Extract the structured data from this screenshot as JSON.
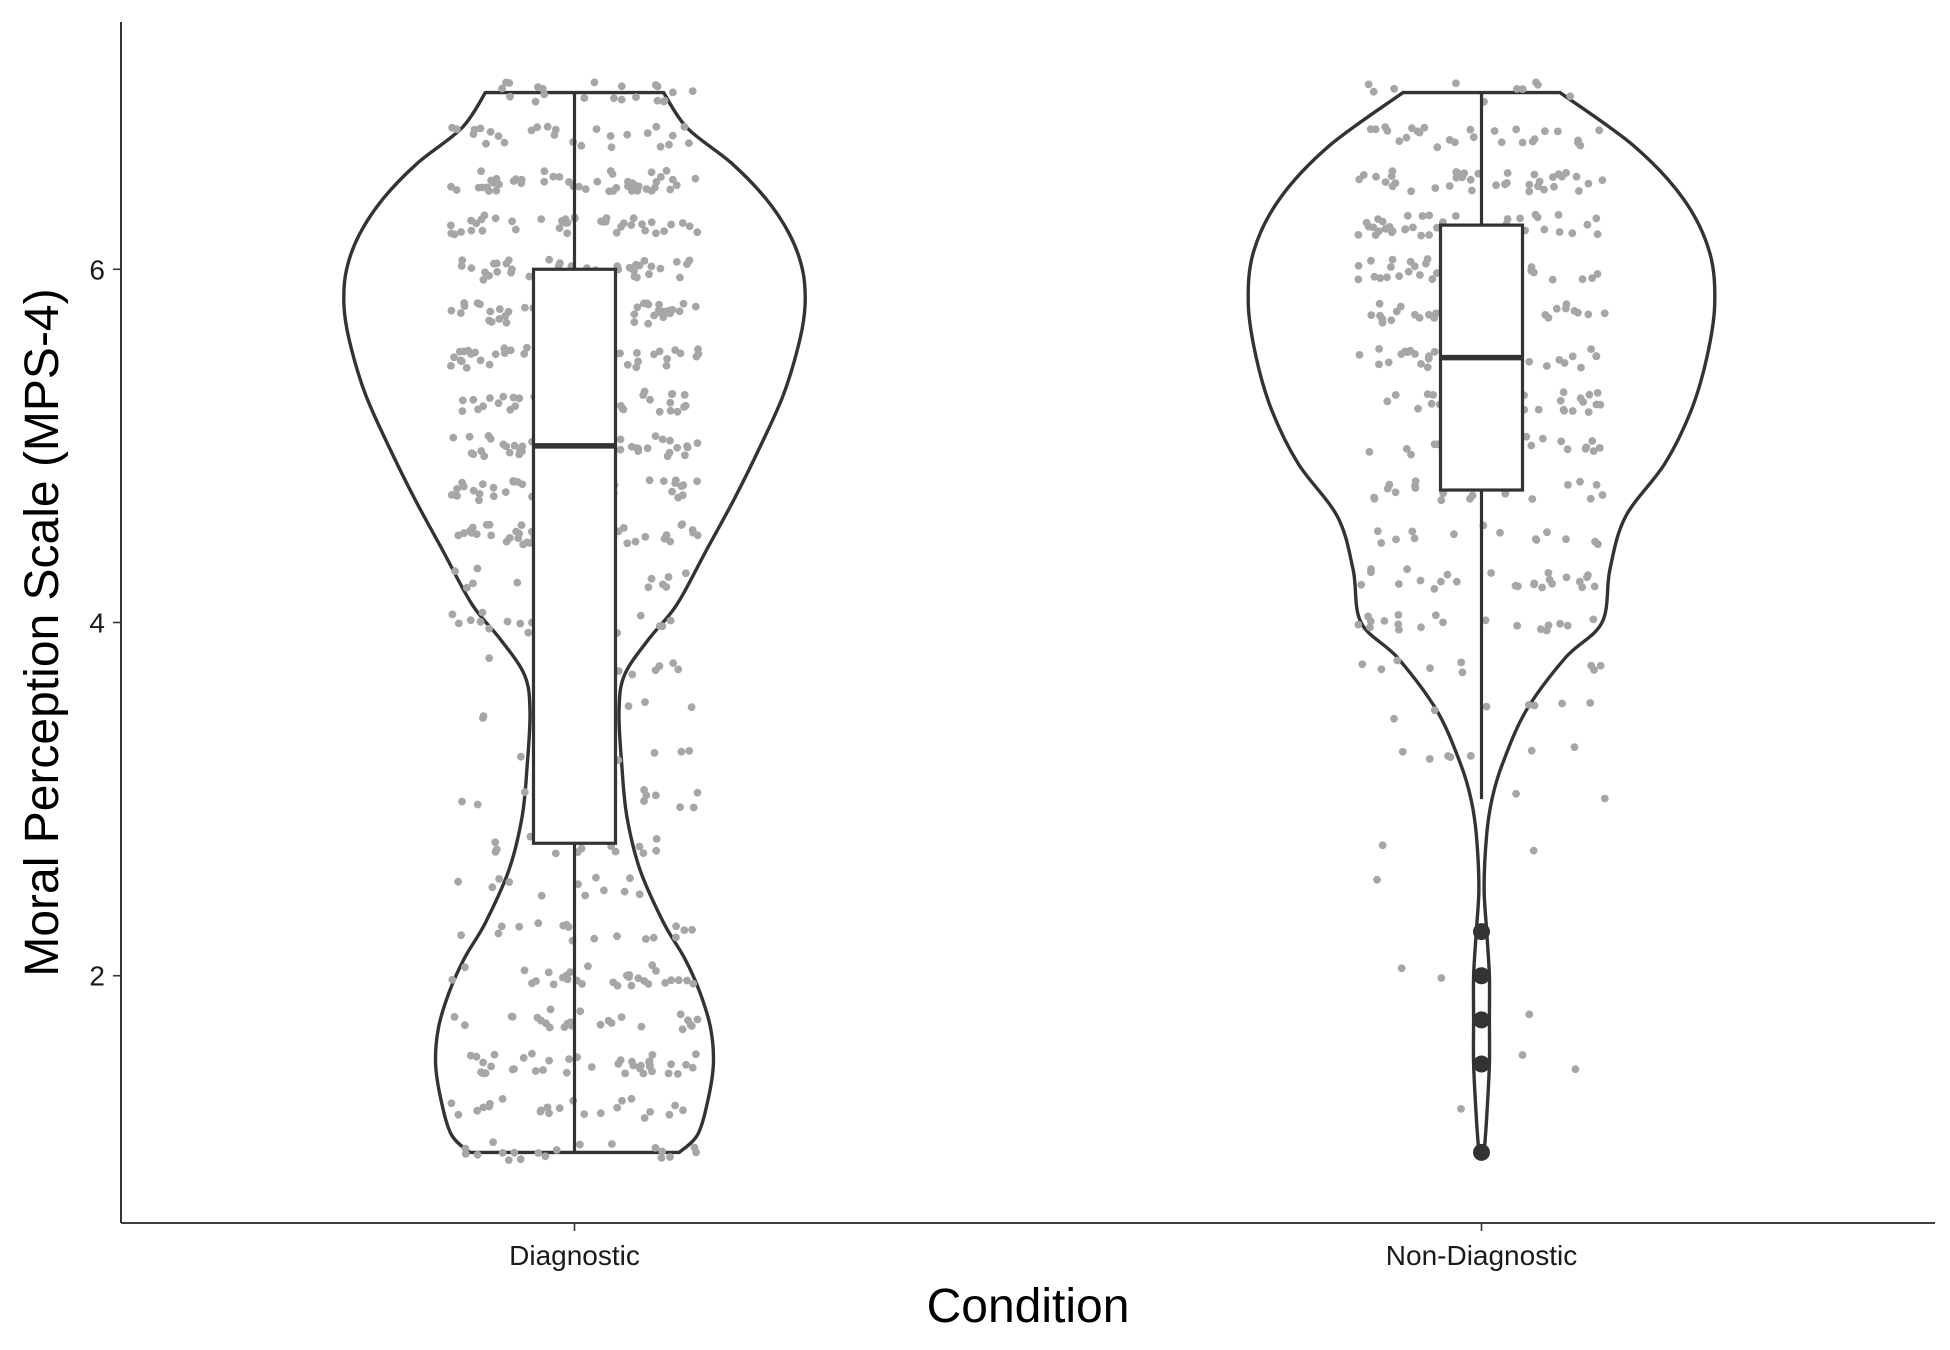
{
  "chart_data": {
    "type": "violin",
    "xlabel": "Condition",
    "ylabel": "Moral Perception Scale (MPS-4)",
    "ylim": [
      0.6,
      7.4
    ],
    "yticks": [
      2,
      4,
      6
    ],
    "categories": [
      "Diagnostic",
      "Non-Diagnostic"
    ],
    "grid": false,
    "colors": {
      "outline": "#333333",
      "points": "#a6a6a6",
      "fill": "#ffffff"
    },
    "groups": [
      {
        "name": "Diagnostic",
        "n_points": 720,
        "box": {
          "min": 1.0,
          "q1": 2.75,
          "median": 5.0,
          "q3": 6.0,
          "max": 7.0
        },
        "outliers": [],
        "density": [
          [
            1.0,
            0.4
          ],
          [
            1.1,
            0.47
          ],
          [
            1.3,
            0.51
          ],
          [
            1.5,
            0.53
          ],
          [
            1.7,
            0.52
          ],
          [
            1.9,
            0.48
          ],
          [
            2.1,
            0.42
          ],
          [
            2.3,
            0.34
          ],
          [
            2.6,
            0.25
          ],
          [
            2.9,
            0.2
          ],
          [
            3.2,
            0.18
          ],
          [
            3.5,
            0.17
          ],
          [
            3.7,
            0.19
          ],
          [
            3.9,
            0.28
          ],
          [
            4.1,
            0.39
          ],
          [
            4.4,
            0.5
          ],
          [
            4.7,
            0.61
          ],
          [
            5.0,
            0.71
          ],
          [
            5.3,
            0.8
          ],
          [
            5.6,
            0.86
          ],
          [
            5.8,
            0.88
          ],
          [
            6.0,
            0.87
          ],
          [
            6.2,
            0.82
          ],
          [
            6.4,
            0.73
          ],
          [
            6.6,
            0.6
          ],
          [
            6.8,
            0.43
          ],
          [
            7.0,
            0.34
          ]
        ]
      },
      {
        "name": "Non-Diagnostic",
        "n_points": 380,
        "box": {
          "min": 3.0,
          "q1": 4.75,
          "median": 5.5,
          "q3": 6.25,
          "max": 7.0
        },
        "outliers": [
          2.25,
          2.0,
          1.75,
          1.5,
          1.0
        ],
        "density": [
          [
            1.0,
            0.01
          ],
          [
            1.2,
            0.02
          ],
          [
            1.5,
            0.03
          ],
          [
            1.75,
            0.03
          ],
          [
            2.0,
            0.03
          ],
          [
            2.25,
            0.02
          ],
          [
            2.5,
            0.01
          ],
          [
            2.8,
            0.02
          ],
          [
            3.0,
            0.04
          ],
          [
            3.2,
            0.08
          ],
          [
            3.5,
            0.17
          ],
          [
            3.8,
            0.32
          ],
          [
            4.0,
            0.46
          ],
          [
            4.3,
            0.49
          ],
          [
            4.6,
            0.55
          ],
          [
            4.9,
            0.7
          ],
          [
            5.2,
            0.8
          ],
          [
            5.5,
            0.86
          ],
          [
            5.8,
            0.89
          ],
          [
            6.1,
            0.87
          ],
          [
            6.4,
            0.77
          ],
          [
            6.7,
            0.58
          ],
          [
            7.0,
            0.3
          ]
        ]
      }
    ]
  }
}
